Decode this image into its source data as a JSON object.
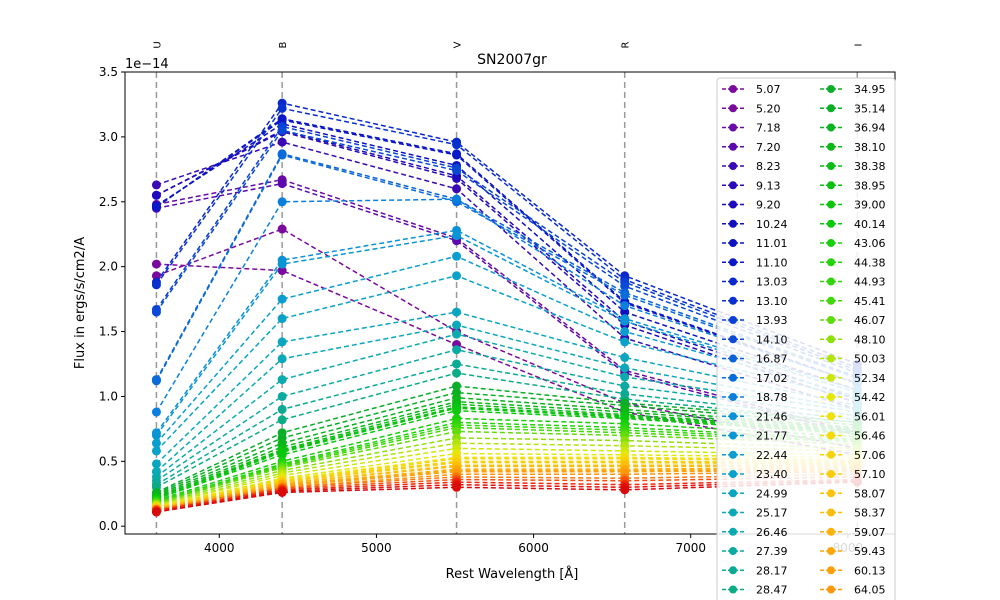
{
  "chart_data": {
    "type": "line",
    "title": "SN2007gr",
    "xlabel": "Rest Wavelength [Å]",
    "ylabel": "Flux in ergs/s/cm2/A",
    "y_offset_text": "1e−14",
    "xlim": [
      3400,
      8300
    ],
    "ylim": [
      -0.06,
      3.5
    ],
    "x_ticks": [
      4000,
      5000,
      6000,
      7000,
      8000
    ],
    "x_tick_labels": [
      "4000",
      "5000",
      "6000",
      "7000",
      "8000"
    ],
    "y_ticks": [
      0.0,
      0.5,
      1.0,
      1.5,
      2.0,
      2.5,
      3.0,
      3.5
    ],
    "y_tick_labels": [
      "0.0",
      "0.5",
      "1.0",
      "1.5",
      "2.0",
      "2.5",
      "3.0",
      "3.5"
    ],
    "filters": [
      {
        "name": "U",
        "wavelength": 3600
      },
      {
        "name": "B",
        "wavelength": 4400
      },
      {
        "name": "V",
        "wavelength": 5510
      },
      {
        "name": "R",
        "wavelength": 6580
      },
      {
        "name": "I",
        "wavelength": 8060
      }
    ],
    "x": [
      3600,
      4400,
      5510,
      6580,
      8060
    ],
    "legend_position": "upper right",
    "series": [
      {
        "name": "5.07",
        "color": "#7a0a9e",
        "values": [
          2.02,
          1.97,
          1.4,
          0.88,
          0.55
        ]
      },
      {
        "name": "5.20",
        "color": "#7a0a9e",
        "values": [
          1.93,
          2.29,
          1.5,
          0.95,
          0.6
        ]
      },
      {
        "name": "7.18",
        "color": "#6a0aa6",
        "values": [
          2.48,
          2.67,
          2.22,
          1.2,
          0.72
        ]
      },
      {
        "name": "7.20",
        "color": "#5c0aae",
        "values": [
          2.45,
          2.64,
          2.2,
          1.18,
          0.7
        ]
      },
      {
        "name": "8.23",
        "color": "#3a0ab4",
        "values": [
          2.63,
          2.96,
          2.6,
          1.45,
          0.9
        ]
      },
      {
        "name": "9.13",
        "color": "#2a0ab8",
        "values": [
          2.55,
          3.04,
          2.68,
          1.55,
          0.95
        ]
      },
      {
        "name": "9.20",
        "color": "#1e0abc",
        "values": [
          2.55,
          3.05,
          2.7,
          1.58,
          0.98
        ]
      },
      {
        "name": "10.24",
        "color": "#1010c0",
        "values": [
          2.47,
          3.1,
          2.78,
          1.65,
          1.05
        ]
      },
      {
        "name": "11.01",
        "color": "#0c14c4",
        "values": [
          2.46,
          3.13,
          2.86,
          1.72,
          1.1
        ]
      },
      {
        "name": "11.10",
        "color": "#0a18c8",
        "values": [
          2.46,
          3.14,
          2.87,
          1.73,
          1.1
        ]
      },
      {
        "name": "13.03",
        "color": "#0a28cc",
        "values": [
          1.88,
          3.26,
          2.96,
          1.93,
          1.25
        ]
      },
      {
        "name": "13.10",
        "color": "#0a30d0",
        "values": [
          1.86,
          3.22,
          2.94,
          1.9,
          1.22
        ]
      },
      {
        "name": "13.93",
        "color": "#0a40d4",
        "values": [
          1.67,
          3.08,
          2.76,
          1.88,
          1.2
        ]
      },
      {
        "name": "14.10",
        "color": "#0a48d6",
        "values": [
          1.65,
          3.05,
          2.74,
          1.85,
          1.18
        ]
      },
      {
        "name": "16.87",
        "color": "#0a62d8",
        "values": [
          1.13,
          2.87,
          2.52,
          1.8,
          1.15
        ]
      },
      {
        "name": "17.02",
        "color": "#0a6cda",
        "values": [
          1.12,
          2.86,
          2.5,
          1.78,
          1.14
        ]
      },
      {
        "name": "18.78",
        "color": "#0a80dc",
        "values": [
          0.88,
          2.5,
          2.52,
          1.7,
          1.1
        ]
      },
      {
        "name": "21.46",
        "color": "#0a92d8",
        "values": [
          0.72,
          2.05,
          2.28,
          1.6,
          1.05
        ]
      },
      {
        "name": "21.77",
        "color": "#0a96d4",
        "values": [
          0.7,
          2.02,
          2.24,
          1.58,
          1.03
        ]
      },
      {
        "name": "22.44",
        "color": "#0a9ed0",
        "values": [
          0.64,
          1.75,
          2.08,
          1.5,
          1.0
        ]
      },
      {
        "name": "23.40",
        "color": "#0aa2c8",
        "values": [
          0.58,
          1.6,
          1.93,
          1.42,
          0.98
        ]
      },
      {
        "name": "24.99",
        "color": "#0aa6c0",
        "values": [
          0.48,
          1.42,
          1.65,
          1.3,
          0.93
        ]
      },
      {
        "name": "25.17",
        "color": "#0aa8b8",
        "values": [
          0.42,
          1.29,
          1.55,
          1.22,
          0.9
        ]
      },
      {
        "name": "26.46",
        "color": "#0aaaae",
        "values": [
          0.38,
          1.13,
          1.48,
          1.15,
          0.88
        ]
      },
      {
        "name": "27.39",
        "color": "#0aaaa2",
        "values": [
          0.35,
          1.0,
          1.36,
          1.08,
          0.85
        ]
      },
      {
        "name": "28.17",
        "color": "#0aaa94",
        "values": [
          0.32,
          0.9,
          1.25,
          1.02,
          0.82
        ]
      },
      {
        "name": "28.47",
        "color": "#0aac86",
        "values": [
          0.3,
          0.82,
          1.18,
          0.98,
          0.8
        ]
      },
      {
        "name": "34.95",
        "color": "#0aae2a",
        "values": [
          0.26,
          0.72,
          1.08,
          0.95,
          0.8
        ]
      },
      {
        "name": "35.14",
        "color": "#0ab024",
        "values": [
          0.25,
          0.68,
          1.03,
          0.93,
          0.78
        ]
      },
      {
        "name": "36.94",
        "color": "#0ab41e",
        "values": [
          0.24,
          0.64,
          0.99,
          0.9,
          0.76
        ]
      },
      {
        "name": "38.10",
        "color": "#0ab818",
        "values": [
          0.23,
          0.61,
          0.96,
          0.88,
          0.75
        ]
      },
      {
        "name": "38.38",
        "color": "#0abc14",
        "values": [
          0.22,
          0.59,
          0.94,
          0.86,
          0.74
        ]
      },
      {
        "name": "38.95",
        "color": "#0ac010",
        "values": [
          0.22,
          0.58,
          0.92,
          0.85,
          0.73
        ]
      },
      {
        "name": "39.00",
        "color": "#0ac40e",
        "values": [
          0.21,
          0.57,
          0.91,
          0.84,
          0.72
        ]
      },
      {
        "name": "40.14",
        "color": "#0ac80c",
        "values": [
          0.21,
          0.55,
          0.89,
          0.83,
          0.71
        ]
      },
      {
        "name": "43.06",
        "color": "#18d00a",
        "values": [
          0.2,
          0.5,
          0.83,
          0.79,
          0.69
        ]
      },
      {
        "name": "44.38",
        "color": "#24d40a",
        "values": [
          0.19,
          0.48,
          0.8,
          0.76,
          0.67
        ]
      },
      {
        "name": "44.93",
        "color": "#30d60a",
        "values": [
          0.19,
          0.47,
          0.78,
          0.74,
          0.66
        ]
      },
      {
        "name": "45.41",
        "color": "#40d80a",
        "values": [
          0.18,
          0.46,
          0.76,
          0.72,
          0.65
        ]
      },
      {
        "name": "46.07",
        "color": "#60dc0a",
        "values": [
          0.18,
          0.45,
          0.73,
          0.7,
          0.63
        ]
      },
      {
        "name": "48.10",
        "color": "#8ce00a",
        "values": [
          0.17,
          0.43,
          0.68,
          0.66,
          0.6
        ]
      },
      {
        "name": "50.03",
        "color": "#b0e40a",
        "values": [
          0.16,
          0.41,
          0.64,
          0.62,
          0.58
        ]
      },
      {
        "name": "52.34",
        "color": "#cce80a",
        "values": [
          0.16,
          0.39,
          0.6,
          0.58,
          0.55
        ]
      },
      {
        "name": "54.42",
        "color": "#e4e80a",
        "values": [
          0.15,
          0.37,
          0.56,
          0.55,
          0.53
        ]
      },
      {
        "name": "56.01",
        "color": "#f0e00a",
        "values": [
          0.15,
          0.36,
          0.53,
          0.53,
          0.51
        ]
      },
      {
        "name": "56.46",
        "color": "#f4da0a",
        "values": [
          0.15,
          0.35,
          0.52,
          0.52,
          0.5
        ]
      },
      {
        "name": "57.06",
        "color": "#f6d20a",
        "values": [
          0.14,
          0.35,
          0.5,
          0.5,
          0.49
        ]
      },
      {
        "name": "57.10",
        "color": "#f8cc0a",
        "values": [
          0.14,
          0.34,
          0.49,
          0.49,
          0.48
        ]
      },
      {
        "name": "58.07",
        "color": "#fac20a",
        "values": [
          0.14,
          0.33,
          0.47,
          0.47,
          0.47
        ]
      },
      {
        "name": "58.37",
        "color": "#fcbc0a",
        "values": [
          0.14,
          0.33,
          0.46,
          0.46,
          0.46
        ]
      },
      {
        "name": "59.07",
        "color": "#fcb20a",
        "values": [
          0.13,
          0.32,
          0.44,
          0.44,
          0.45
        ]
      },
      {
        "name": "59.43",
        "color": "#fca80a",
        "values": [
          0.13,
          0.32,
          0.43,
          0.43,
          0.44
        ]
      },
      {
        "name": "60.13",
        "color": "#fca00a",
        "values": [
          0.13,
          0.31,
          0.42,
          0.42,
          0.43
        ]
      },
      {
        "name": "64.05",
        "color": "#fc960a",
        "values": [
          0.13,
          0.3,
          0.4,
          0.4,
          0.42
        ]
      },
      {
        "name": "",
        "color": "#f8780a",
        "values": [
          0.13,
          0.3,
          0.38,
          0.37,
          0.4
        ]
      },
      {
        "name": "",
        "color": "#f4500a",
        "values": [
          0.12,
          0.29,
          0.36,
          0.35,
          0.38
        ]
      },
      {
        "name": "",
        "color": "#ee280a",
        "values": [
          0.12,
          0.28,
          0.34,
          0.32,
          0.36
        ]
      },
      {
        "name": "",
        "color": "#e2100a",
        "values": [
          0.11,
          0.27,
          0.32,
          0.3,
          0.35
        ]
      },
      {
        "name": "",
        "color": "#d80a0a",
        "values": [
          0.11,
          0.26,
          0.3,
          0.28,
          0.34
        ]
      }
    ]
  }
}
